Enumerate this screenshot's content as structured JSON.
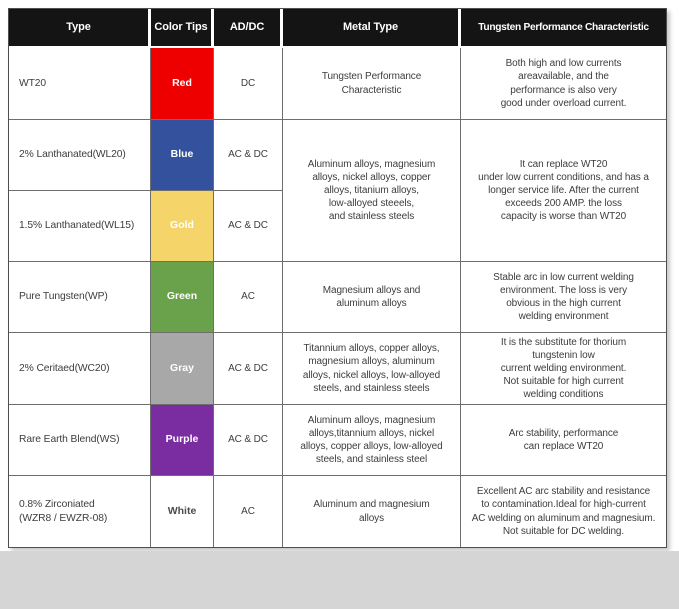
{
  "page": {
    "bottom_band_color": "#d5d5d5",
    "table_border_color": "#6e6e6e",
    "header_bg": "#141414",
    "header_text_color": "#ffffff"
  },
  "table": {
    "columns": [
      "Type",
      "Color Tips",
      "AD/DC",
      "Metal Type",
      "Tungsten Performance Characteristic"
    ],
    "rows": [
      {
        "type": "WT20",
        "color_label": "Red",
        "color_hex": "#ee0000",
        "label_color": "#ffffff",
        "current": "DC",
        "metal": "Tungsten Performance\nCharacteristic",
        "performance": "Both high and low currents\nareavailable, and the\nperformance is also very\ngood under overload current."
      },
      {
        "type": "2% Lanthanated(WL20)",
        "color_label": "Blue",
        "color_hex": "#34519e",
        "label_color": "#ffffff",
        "current": "AC & DC"
      },
      {
        "type": "1.5% Lanthanated(WL15)",
        "color_label": "Gold",
        "color_hex": "#f5d56a",
        "label_color": "#ffffff",
        "current": "AC & DC"
      },
      {
        "type": "Pure Tungsten(WP)",
        "color_label": "Green",
        "color_hex": "#6aa24c",
        "label_color": "#ffffff",
        "current": "AC",
        "metal": "Magnesium alloys and\naluminum alloys",
        "performance": "Stable arc in low current welding\nenvironment. The loss is very\nobvious in the high current\nwelding environment"
      },
      {
        "type": "2% Ceritaed(WC20)",
        "color_label": "Gray",
        "color_hex": "#a8a8a8",
        "label_color": "#ffffff",
        "current": "AC & DC",
        "metal": "Titannium alloys, copper alloys,\nmagnesium alloys, aluminum\nalloys, nickel alloys, low-alloyed\nsteels, and stainless steels",
        "performance": "It is the substitute for thorium\ntungstenin low\ncurrent welding environment.\nNot suitable for high current\nwelding conditions"
      },
      {
        "type": "Rare Earth Blend(WS)",
        "color_label": "Purple",
        "color_hex": "#7a2da1",
        "label_color": "#ffffff",
        "current": "AC & DC",
        "metal": "Aluminum alloys, magnesium\nalloys,titannium alloys, nickel\nalloys, copper alloys, low-alloyed\nsteels, and stainless steel",
        "performance": "Arc stability, performance\ncan replace WT20"
      },
      {
        "type": "0.8% Zirconiated\n(WZR8 / EWZR-08)",
        "color_label": "White",
        "color_hex": "#ffffff",
        "label_color": "#4c4c4c",
        "current": "AC",
        "metal": "Aluminum and magnesium\nalloys",
        "performance": "Excellent AC arc stability and resistance\nto contamination.Ideal for high-current\nAC welding on aluminum and magnesium.\nNot suitable for DC welding."
      }
    ],
    "merged": {
      "metal": "Aluminum alloys, magnesium\nalloys, nickel alloys, copper\nalloys, titanium alloys,\nlow-alloyed steeels,\nand stainless steels",
      "performance": "It can replace WT20\nunder low current conditions, and has a\nlonger service life. After the current\nexceeds 200 AMP. the loss\ncapacity is worse than WT20"
    }
  }
}
